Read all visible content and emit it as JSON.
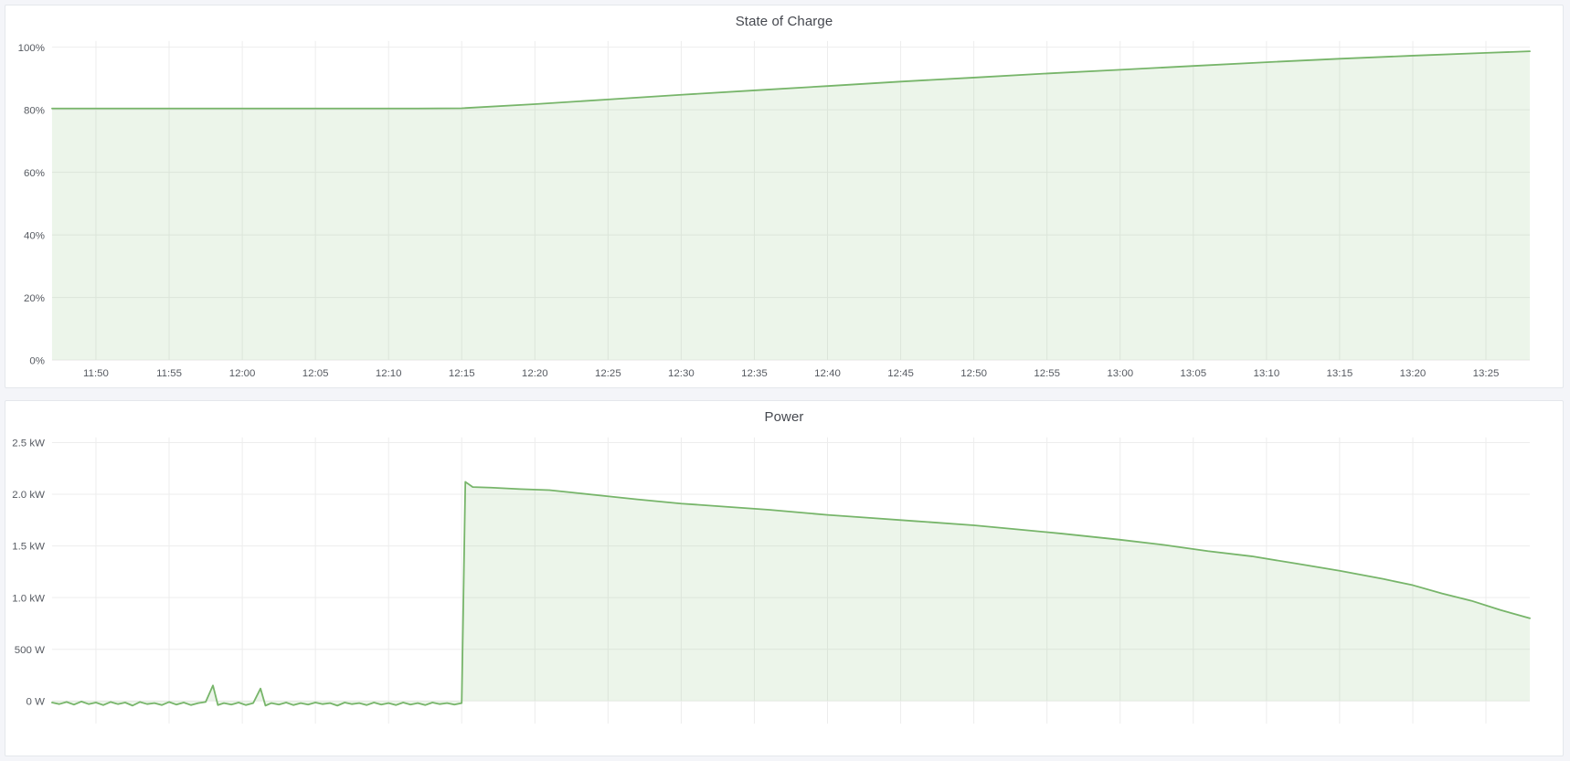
{
  "page": {
    "background_color": "#f4f5f9",
    "panel_background": "#ffffff",
    "accent_color": "#77b56a",
    "grid_color": "#ededed",
    "text_color": "#565a61",
    "title_color": "#45484f"
  },
  "chart_data": [
    {
      "type": "area",
      "title": "State of Charge",
      "unit": "%",
      "grid": true,
      "legend": "none",
      "line_color": "#77b56a",
      "fill_color": "rgba(119,181,106,0.14)",
      "x_range": [
        "11:47",
        "13:28"
      ],
      "y_range": [
        0,
        102
      ],
      "y_ticks": [
        {
          "value": 0,
          "label": "0%"
        },
        {
          "value": 20,
          "label": "20%"
        },
        {
          "value": 40,
          "label": "40%"
        },
        {
          "value": 60,
          "label": "60%"
        },
        {
          "value": 80,
          "label": "80%"
        },
        {
          "value": 100,
          "label": "100%"
        }
      ],
      "x_ticks": [
        "11:50",
        "11:55",
        "12:00",
        "12:05",
        "12:10",
        "12:15",
        "12:20",
        "12:25",
        "12:30",
        "12:35",
        "12:40",
        "12:45",
        "12:50",
        "12:55",
        "13:00",
        "13:05",
        "13:10",
        "13:15",
        "13:20",
        "13:25"
      ],
      "show_x_labels": true,
      "series": [
        {
          "name": "State of Charge",
          "points": [
            [
              "11:47",
              80.4
            ],
            [
              "11:52",
              80.4
            ],
            [
              "11:57",
              80.4
            ],
            [
              "12:02",
              80.4
            ],
            [
              "12:07",
              80.4
            ],
            [
              "12:12",
              80.4
            ],
            [
              "12:15",
              80.5
            ],
            [
              "12:20",
              81.8
            ],
            [
              "12:25",
              83.3
            ],
            [
              "12:30",
              84.8
            ],
            [
              "12:35",
              86.2
            ],
            [
              "12:40",
              87.6
            ],
            [
              "12:45",
              89.0
            ],
            [
              "12:50",
              90.3
            ],
            [
              "12:55",
              91.6
            ],
            [
              "13:00",
              92.8
            ],
            [
              "13:05",
              94.0
            ],
            [
              "13:10",
              95.2
            ],
            [
              "13:15",
              96.3
            ],
            [
              "13:20",
              97.3
            ],
            [
              "13:25",
              98.2
            ],
            [
              "13:28",
              98.7
            ]
          ]
        }
      ]
    },
    {
      "type": "area",
      "title": "Power",
      "unit": "W",
      "grid": true,
      "legend": "none",
      "line_color": "#77b56a",
      "fill_color": "rgba(119,181,106,0.14)",
      "x_range": [
        "11:47",
        "13:28"
      ],
      "y_range": [
        -0.22,
        2.55
      ],
      "y_ticks": [
        {
          "value": 0,
          "label": "0 W"
        },
        {
          "value": 0.5,
          "label": "500 W"
        },
        {
          "value": 1.0,
          "label": "1.0 kW"
        },
        {
          "value": 1.5,
          "label": "1.5 kW"
        },
        {
          "value": 2.0,
          "label": "2.0 kW"
        },
        {
          "value": 2.5,
          "label": "2.5 kW"
        }
      ],
      "x_ticks": [
        "11:50",
        "11:55",
        "12:00",
        "12:05",
        "12:10",
        "12:15",
        "12:20",
        "12:25",
        "12:30",
        "12:35",
        "12:40",
        "12:45",
        "12:50",
        "12:55",
        "13:00",
        "13:05",
        "13:10",
        "13:15",
        "13:20",
        "13:25"
      ],
      "show_x_labels": false,
      "series": [
        {
          "name": "Power",
          "points": [
            [
              "11:47:00",
              -0.015
            ],
            [
              "11:47:30",
              -0.03
            ],
            [
              "11:48:00",
              -0.01
            ],
            [
              "11:48:30",
              -0.035
            ],
            [
              "11:49:00",
              -0.005
            ],
            [
              "11:49:30",
              -0.03
            ],
            [
              "11:50:00",
              -0.015
            ],
            [
              "11:50:30",
              -0.04
            ],
            [
              "11:51:00",
              -0.01
            ],
            [
              "11:51:30",
              -0.03
            ],
            [
              "11:52:00",
              -0.015
            ],
            [
              "11:52:30",
              -0.045
            ],
            [
              "11:53:00",
              -0.01
            ],
            [
              "11:53:30",
              -0.03
            ],
            [
              "11:54:00",
              -0.02
            ],
            [
              "11:54:30",
              -0.04
            ],
            [
              "11:55:00",
              -0.01
            ],
            [
              "11:55:30",
              -0.035
            ],
            [
              "11:56:00",
              -0.015
            ],
            [
              "11:56:30",
              -0.04
            ],
            [
              "11:57:00",
              -0.02
            ],
            [
              "11:57:30",
              -0.01
            ],
            [
              "11:58:00",
              0.15
            ],
            [
              "11:58:20",
              -0.04
            ],
            [
              "11:58:45",
              -0.02
            ],
            [
              "11:59:15",
              -0.035
            ],
            [
              "11:59:45",
              -0.015
            ],
            [
              "12:00:15",
              -0.04
            ],
            [
              "12:00:45",
              -0.02
            ],
            [
              "12:01:15",
              0.12
            ],
            [
              "12:01:35",
              -0.045
            ],
            [
              "12:02:00",
              -0.02
            ],
            [
              "12:02:30",
              -0.035
            ],
            [
              "12:03:00",
              -0.015
            ],
            [
              "12:03:30",
              -0.04
            ],
            [
              "12:04:00",
              -0.02
            ],
            [
              "12:04:30",
              -0.035
            ],
            [
              "12:05:00",
              -0.015
            ],
            [
              "12:05:30",
              -0.03
            ],
            [
              "12:06:00",
              -0.02
            ],
            [
              "12:06:30",
              -0.045
            ],
            [
              "12:07:00",
              -0.015
            ],
            [
              "12:07:30",
              -0.03
            ],
            [
              "12:08:00",
              -0.02
            ],
            [
              "12:08:30",
              -0.04
            ],
            [
              "12:09:00",
              -0.015
            ],
            [
              "12:09:30",
              -0.035
            ],
            [
              "12:10:00",
              -0.02
            ],
            [
              "12:10:30",
              -0.04
            ],
            [
              "12:11:00",
              -0.015
            ],
            [
              "12:11:30",
              -0.035
            ],
            [
              "12:12:00",
              -0.02
            ],
            [
              "12:12:30",
              -0.04
            ],
            [
              "12:13:00",
              -0.015
            ],
            [
              "12:13:30",
              -0.03
            ],
            [
              "12:14:00",
              -0.02
            ],
            [
              "12:14:30",
              -0.035
            ],
            [
              "12:15:00",
              -0.02
            ],
            [
              "12:15:15",
              2.12
            ],
            [
              "12:15:45",
              2.07
            ],
            [
              "12:17:00",
              2.065
            ],
            [
              "12:19:00",
              2.05
            ],
            [
              "12:21:00",
              2.04
            ],
            [
              "12:23:00",
              2.01
            ],
            [
              "12:25:00",
              1.98
            ],
            [
              "12:27:00",
              1.95
            ],
            [
              "12:30:00",
              1.91
            ],
            [
              "12:33:00",
              1.88
            ],
            [
              "12:36:00",
              1.85
            ],
            [
              "12:40:00",
              1.8
            ],
            [
              "12:43:00",
              1.77
            ],
            [
              "12:46:00",
              1.74
            ],
            [
              "12:50:00",
              1.7
            ],
            [
              "12:53:00",
              1.66
            ],
            [
              "12:56:00",
              1.62
            ],
            [
              "13:00:00",
              1.56
            ],
            [
              "13:03:00",
              1.51
            ],
            [
              "13:06:00",
              1.45
            ],
            [
              "13:09:00",
              1.4
            ],
            [
              "13:12:00",
              1.33
            ],
            [
              "13:15:00",
              1.26
            ],
            [
              "13:18:00",
              1.18
            ],
            [
              "13:20:00",
              1.12
            ],
            [
              "13:22:00",
              1.04
            ],
            [
              "13:24:00",
              0.97
            ],
            [
              "13:26:00",
              0.88
            ],
            [
              "13:28:00",
              0.8
            ]
          ]
        }
      ]
    }
  ]
}
